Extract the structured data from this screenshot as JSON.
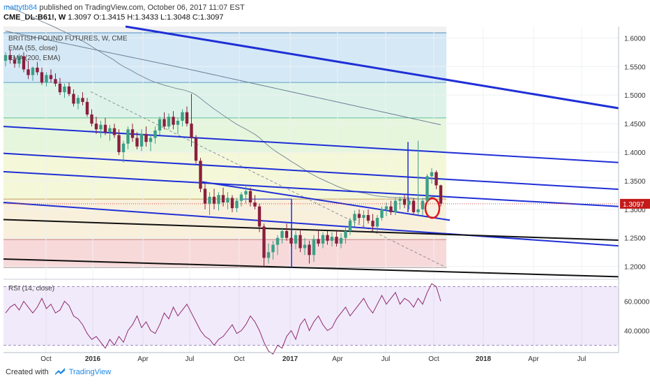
{
  "header": {
    "user": "mattytb84",
    "published": "published on TradingView.com, October 06, 2017 11:07 EST",
    "symbol": "CME_DL:B61!, W",
    "ohlc": "1.3097 O:1.3415 H:1.3433 L:1.3048 C:1.3097"
  },
  "footer": {
    "created_with": "Created with",
    "brand": "TradingView"
  },
  "colors": {
    "up": "#3c9f87",
    "down": "#8a1f3d",
    "trendline": "#1f2fd6",
    "black_line": "#111111",
    "ema55": "#7d8c9a",
    "ema200": "#6a7f96",
    "rsi": "#8e2a6e",
    "price_label_bg": "#c41a1a",
    "highlight_circle": "#e01414"
  },
  "chart_data": [
    {
      "type": "candlestick",
      "title": "BRITISH POUND FUTURES, W, CME",
      "indicators": [
        "EMA (55, close)",
        "EMA (200, EMA)"
      ],
      "x_tick_labels": [
        "Oct",
        "2016",
        "Apr",
        "Jul",
        "Oct",
        "2017",
        "Apr",
        "Jul",
        "Oct",
        "2018",
        "Apr",
        "Jul"
      ],
      "x_range": [
        "2015-08",
        "2018-09"
      ],
      "y_range": [
        1.18,
        1.62
      ],
      "y_ticks": [
        "1.6000",
        "1.5500",
        "1.5000",
        "1.4500",
        "1.4000",
        "1.3500",
        "1.3000",
        "1.2500",
        "1.2000"
      ],
      "last_price": "1.3097",
      "fib_levels": [
        1.198,
        1.247,
        1.318,
        1.4,
        1.46,
        1.522,
        1.609
      ],
      "ohlc": [
        [
          1.56,
          1.575,
          1.55,
          1.57
        ],
        [
          1.57,
          1.58,
          1.555,
          1.562
        ],
        [
          1.562,
          1.568,
          1.548,
          1.555
        ],
        [
          1.555,
          1.572,
          1.548,
          1.568
        ],
        [
          1.568,
          1.575,
          1.54,
          1.545
        ],
        [
          1.545,
          1.56,
          1.528,
          1.535
        ],
        [
          1.535,
          1.55,
          1.525,
          1.548
        ],
        [
          1.548,
          1.558,
          1.535,
          1.54
        ],
        [
          1.54,
          1.548,
          1.518,
          1.522
        ],
        [
          1.522,
          1.54,
          1.515,
          1.535
        ],
        [
          1.535,
          1.545,
          1.522,
          1.528
        ],
        [
          1.528,
          1.538,
          1.515,
          1.52
        ],
        [
          1.52,
          1.53,
          1.5,
          1.505
        ],
        [
          1.505,
          1.52,
          1.495,
          1.515
        ],
        [
          1.515,
          1.522,
          1.498,
          1.502
        ],
        [
          1.502,
          1.51,
          1.48,
          1.485
        ],
        [
          1.485,
          1.5,
          1.475,
          1.495
        ],
        [
          1.495,
          1.505,
          1.482,
          1.488
        ],
        [
          1.488,
          1.495,
          1.462,
          1.466
        ],
        [
          1.466,
          1.475,
          1.445,
          1.45
        ],
        [
          1.45,
          1.462,
          1.432,
          1.44
        ],
        [
          1.44,
          1.455,
          1.425,
          1.448
        ],
        [
          1.448,
          1.46,
          1.43,
          1.435
        ],
        [
          1.435,
          1.448,
          1.42,
          1.442
        ],
        [
          1.442,
          1.45,
          1.425,
          1.43
        ],
        [
          1.43,
          1.44,
          1.395,
          1.4
        ],
        [
          1.4,
          1.42,
          1.382,
          1.415
        ],
        [
          1.415,
          1.445,
          1.405,
          1.44
        ],
        [
          1.44,
          1.45,
          1.418,
          1.425
        ],
        [
          1.425,
          1.435,
          1.405,
          1.41
        ],
        [
          1.41,
          1.44,
          1.402,
          1.432
        ],
        [
          1.432,
          1.445,
          1.41,
          1.418
        ],
        [
          1.418,
          1.43,
          1.402,
          1.425
        ],
        [
          1.425,
          1.445,
          1.415,
          1.438
        ],
        [
          1.438,
          1.462,
          1.43,
          1.458
        ],
        [
          1.458,
          1.47,
          1.44,
          1.445
        ],
        [
          1.445,
          1.468,
          1.44,
          1.462
        ],
        [
          1.462,
          1.472,
          1.44,
          1.448
        ],
        [
          1.448,
          1.46,
          1.432,
          1.455
        ],
        [
          1.455,
          1.475,
          1.445,
          1.47
        ],
        [
          1.47,
          1.48,
          1.445,
          1.45
        ],
        [
          1.45,
          1.502,
          1.41,
          1.425
        ],
        [
          1.425,
          1.43,
          1.38,
          1.385
        ],
        [
          1.385,
          1.39,
          1.33,
          1.336
        ],
        [
          1.336,
          1.345,
          1.3,
          1.31
        ],
        [
          1.31,
          1.33,
          1.29,
          1.322
        ],
        [
          1.322,
          1.336,
          1.3,
          1.31
        ],
        [
          1.31,
          1.33,
          1.298,
          1.325
        ],
        [
          1.325,
          1.338,
          1.305,
          1.312
        ],
        [
          1.312,
          1.33,
          1.3,
          1.32
        ],
        [
          1.32,
          1.325,
          1.295,
          1.302
        ],
        [
          1.302,
          1.32,
          1.295,
          1.315
        ],
        [
          1.315,
          1.33,
          1.305,
          1.326
        ],
        [
          1.326,
          1.34,
          1.31,
          1.332
        ],
        [
          1.332,
          1.338,
          1.305,
          1.312
        ],
        [
          1.312,
          1.325,
          1.3,
          1.305
        ],
        [
          1.305,
          1.31,
          1.26,
          1.27
        ],
        [
          1.27,
          1.275,
          1.2,
          1.215
        ],
        [
          1.215,
          1.24,
          1.205,
          1.225
        ],
        [
          1.225,
          1.245,
          1.212,
          1.238
        ],
        [
          1.238,
          1.255,
          1.22,
          1.25
        ],
        [
          1.25,
          1.268,
          1.24,
          1.262
        ],
        [
          1.262,
          1.275,
          1.245,
          1.25
        ],
        [
          1.25,
          1.265,
          1.235,
          1.24
        ],
        [
          1.24,
          1.262,
          1.23,
          1.255
        ],
        [
          1.255,
          1.265,
          1.225,
          1.232
        ],
        [
          1.232,
          1.25,
          1.22,
          1.238
        ],
        [
          1.238,
          1.245,
          1.205,
          1.22
        ],
        [
          1.22,
          1.255,
          1.208,
          1.248
        ],
        [
          1.248,
          1.262,
          1.235,
          1.24
        ],
        [
          1.24,
          1.26,
          1.232,
          1.255
        ],
        [
          1.255,
          1.262,
          1.238,
          1.245
        ],
        [
          1.245,
          1.26,
          1.235,
          1.252
        ],
        [
          1.252,
          1.262,
          1.235,
          1.24
        ],
        [
          1.24,
          1.258,
          1.232,
          1.25
        ],
        [
          1.25,
          1.268,
          1.24,
          1.262
        ],
        [
          1.262,
          1.285,
          1.255,
          1.28
        ],
        [
          1.28,
          1.298,
          1.27,
          1.292
        ],
        [
          1.292,
          1.3,
          1.275,
          1.285
        ],
        [
          1.285,
          1.298,
          1.27,
          1.29
        ],
        [
          1.29,
          1.3,
          1.275,
          1.28
        ],
        [
          1.28,
          1.292,
          1.262,
          1.27
        ],
        [
          1.27,
          1.29,
          1.262,
          1.285
        ],
        [
          1.285,
          1.305,
          1.28,
          1.3
        ],
        [
          1.3,
          1.312,
          1.288,
          1.305
        ],
        [
          1.305,
          1.315,
          1.29,
          1.295
        ],
        [
          1.295,
          1.32,
          1.29,
          1.315
        ],
        [
          1.315,
          1.322,
          1.3,
          1.318
        ],
        [
          1.318,
          1.325,
          1.302,
          1.308
        ],
        [
          1.308,
          1.32,
          1.3,
          1.315
        ],
        [
          1.315,
          1.32,
          1.29,
          1.295
        ],
        [
          1.295,
          1.42,
          1.29,
          1.3
        ],
        [
          1.3,
          1.32,
          1.29,
          1.315
        ],
        [
          1.315,
          1.362,
          1.31,
          1.358
        ],
        [
          1.358,
          1.372,
          1.345,
          1.365
        ],
        [
          1.365,
          1.368,
          1.335,
          1.342
        ],
        [
          1.342,
          1.343,
          1.305,
          1.31
        ]
      ]
    },
    {
      "type": "line",
      "title": "RSI (14, close)",
      "y_range": [
        25,
        75
      ],
      "y_ticks": [
        "60.0000",
        "40.0000"
      ],
      "values": [
        52,
        56,
        58,
        54,
        60,
        56,
        52,
        56,
        62,
        55,
        58,
        52,
        54,
        60,
        57,
        50,
        48,
        44,
        38,
        34,
        36,
        32,
        28,
        34,
        30,
        36,
        32,
        40,
        44,
        50,
        42,
        46,
        40,
        38,
        44,
        52,
        48,
        56,
        50,
        54,
        58,
        52,
        46,
        40,
        36,
        34,
        30,
        34,
        36,
        40,
        44,
        38,
        40,
        44,
        50,
        46,
        40,
        32,
        26,
        24,
        30,
        28,
        36,
        40,
        34,
        44,
        48,
        40,
        46,
        50,
        44,
        40,
        42,
        48,
        52,
        56,
        50,
        54,
        58,
        62,
        56,
        52,
        58,
        64,
        58,
        62,
        66,
        58,
        62,
        60,
        56,
        62,
        58,
        66,
        72,
        70,
        60
      ]
    }
  ]
}
